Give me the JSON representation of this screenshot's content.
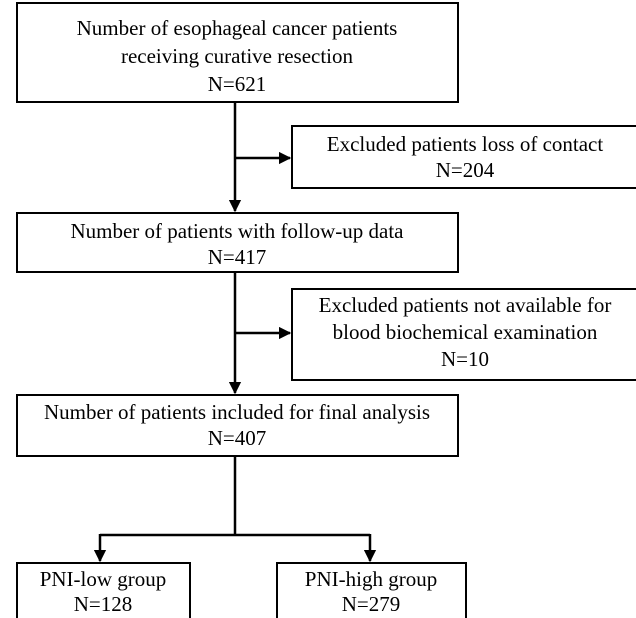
{
  "nodes": [
    {
      "lines": [
        "Number of esophageal cancer patients",
        "receiving curative resection",
        "N=621"
      ]
    },
    {
      "lines": [
        "Excluded patients loss of contact",
        "N=204"
      ]
    },
    {
      "lines": [
        "Number of patients with follow-up data",
        "N=417"
      ]
    },
    {
      "lines": [
        "Excluded patients not available for",
        "blood biochemical examination",
        "N=10"
      ]
    },
    {
      "lines": [
        "Number of patients included for final analysis",
        "N=407"
      ]
    },
    {
      "lines": [
        "PNI-low group",
        "N=128"
      ]
    },
    {
      "lines": [
        "PNI-high group",
        "N=279"
      ]
    }
  ]
}
